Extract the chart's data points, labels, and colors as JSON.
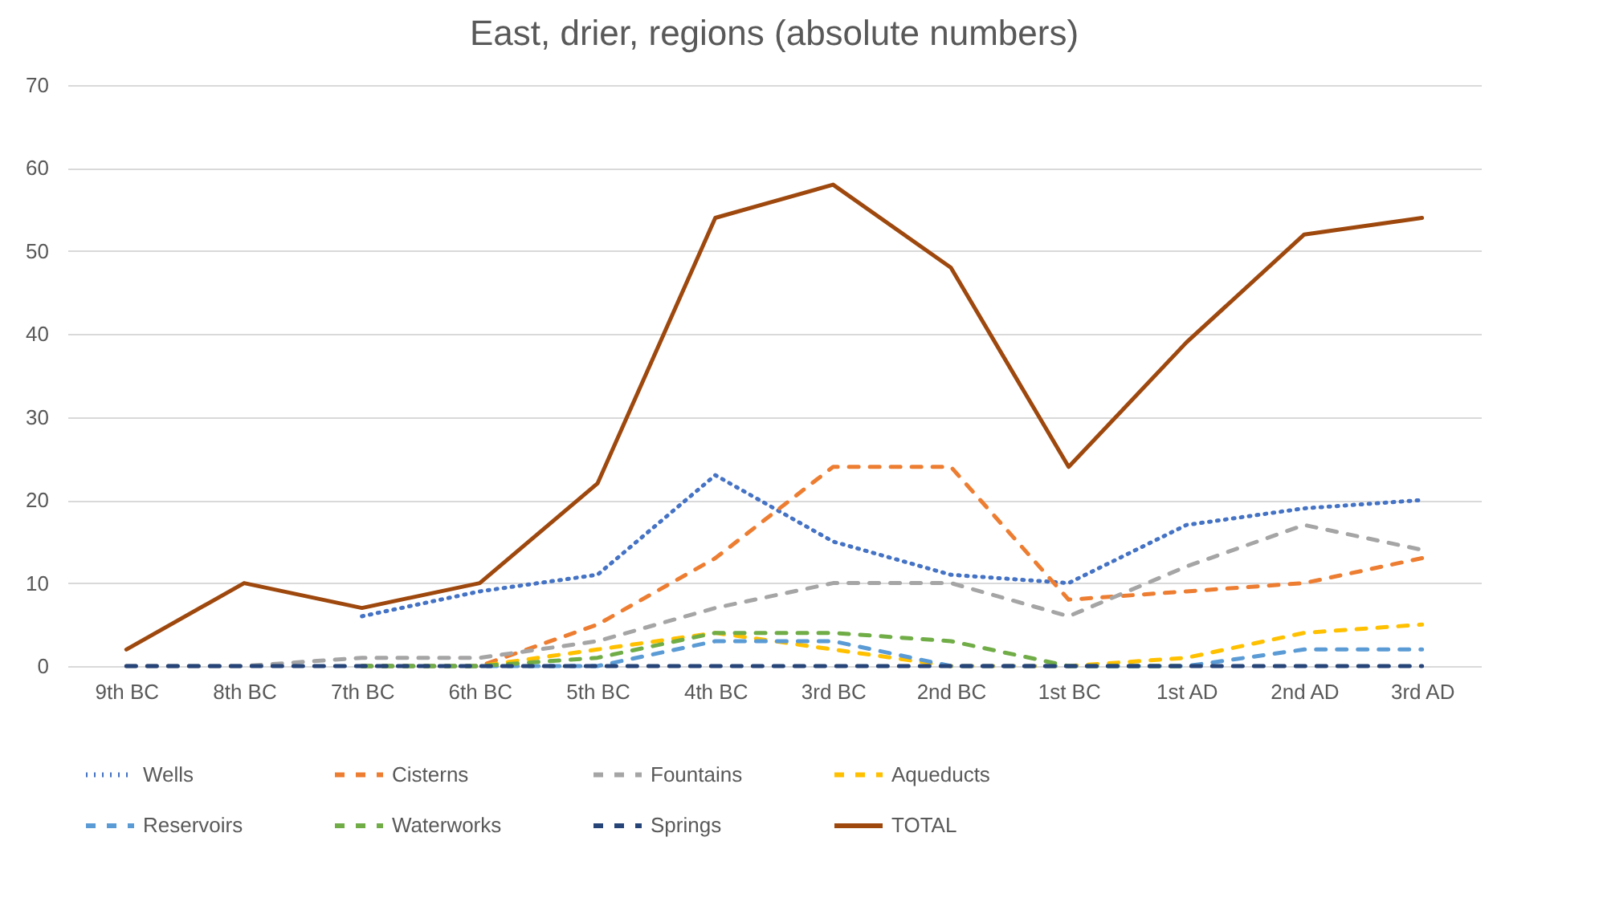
{
  "chart_data": {
    "type": "line",
    "title": "East, drier, regions (absolute numbers)",
    "categories": [
      "9th BC",
      "8th BC",
      "7th BC",
      "6th BC",
      "5th BC",
      "4th BC",
      "3rd BC",
      "2nd BC",
      "1st BC",
      "1st AD",
      "2nd AD",
      "3rd AD"
    ],
    "ylim": [
      0,
      70
    ],
    "yticks": [
      0,
      10,
      20,
      30,
      40,
      50,
      60,
      70
    ],
    "grid": "y",
    "legend": "bottom",
    "series": [
      {
        "name": "Wells",
        "color": "#4472c4",
        "line_style": "dotted",
        "values": [
          null,
          null,
          6,
          9,
          11,
          23,
          15,
          11,
          10,
          17,
          19,
          20
        ]
      },
      {
        "name": "Cisterns",
        "color": "#ed7d31",
        "line_style": "dashed",
        "values": [
          null,
          null,
          0,
          0,
          5,
          13,
          24,
          24,
          8,
          9,
          10,
          13
        ]
      },
      {
        "name": "Fountains",
        "color": "#a5a5a5",
        "line_style": "dashed",
        "values": [
          0,
          0,
          1,
          1,
          3,
          7,
          10,
          10,
          6,
          12,
          17,
          14
        ]
      },
      {
        "name": "Aqueducts",
        "color": "#ffc000",
        "line_style": "dashed",
        "values": [
          null,
          null,
          0,
          0,
          2,
          4,
          2,
          0,
          0,
          1,
          4,
          5
        ]
      },
      {
        "name": "Reservoirs",
        "color": "#5b9bd5",
        "line_style": "dashed",
        "values": [
          null,
          null,
          0,
          0,
          0,
          3,
          3,
          0,
          0,
          0,
          2,
          2
        ]
      },
      {
        "name": "Waterworks",
        "color": "#70ad47",
        "line_style": "dashed",
        "values": [
          null,
          null,
          0,
          0,
          1,
          4,
          4,
          3,
          0,
          0,
          null,
          null
        ]
      },
      {
        "name": "Springs",
        "color": "#264478",
        "line_style": "dashed",
        "values": [
          0,
          0,
          0,
          0,
          0,
          0,
          0,
          0,
          0,
          0,
          0,
          0
        ]
      },
      {
        "name": "TOTAL",
        "color": "#9e480e",
        "line_style": "solid",
        "values": [
          2,
          10,
          7,
          10,
          22,
          54,
          58,
          48,
          24,
          39,
          52,
          54
        ]
      }
    ]
  }
}
